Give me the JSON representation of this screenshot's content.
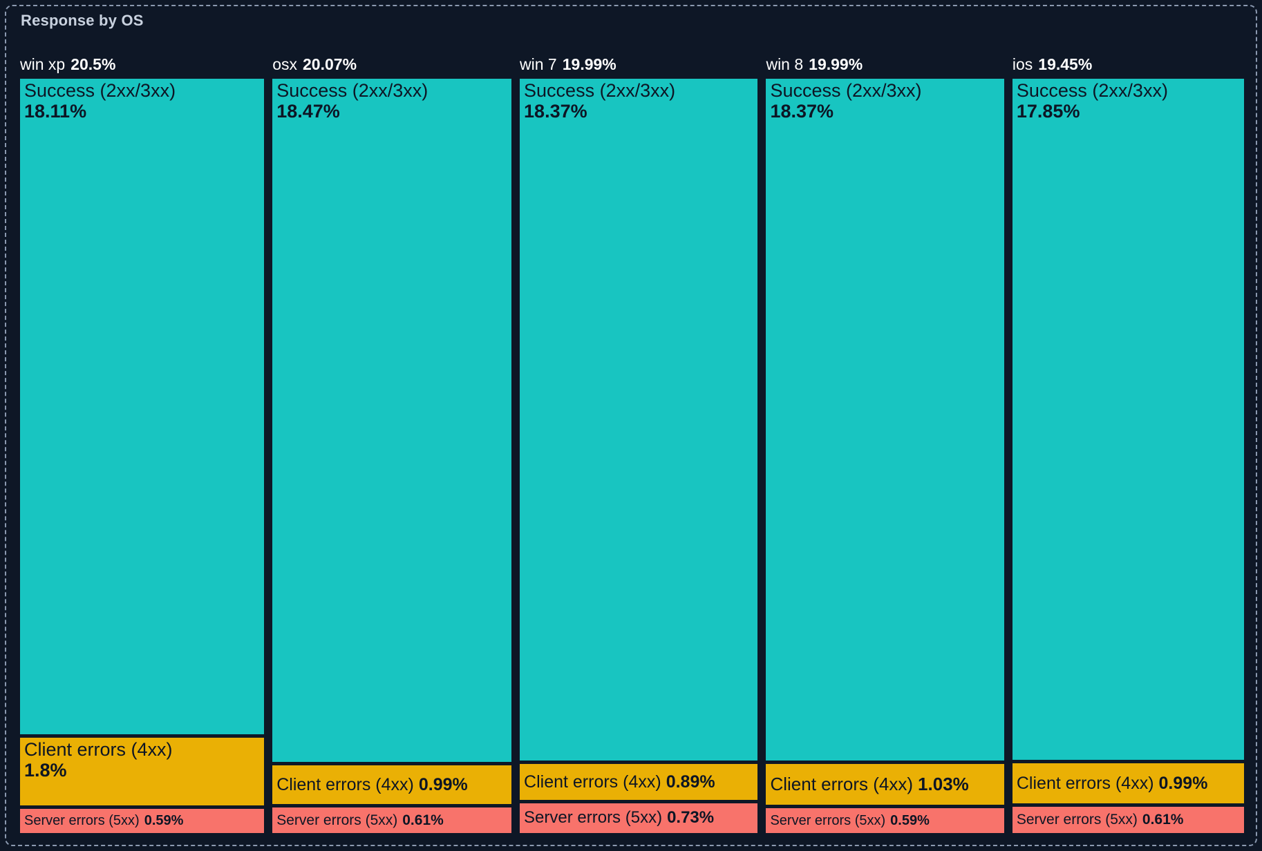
{
  "panel": {
    "title": "Response by OS"
  },
  "colors": {
    "background": "#0e1726",
    "border": "#8b99b0",
    "title_text": "#c9d2df",
    "header_text": "#ffffff",
    "segment_text": "#0d1524",
    "success": "#18c5c1",
    "client_errors": "#eab005",
    "server_errors": "#f8736b"
  },
  "chart_data": {
    "type": "treemap",
    "title": "Response by OS",
    "unit": "%",
    "legend": "none",
    "layout_hint": "five vertical columns sized by group total; segments stacked by value within each column",
    "groups": [
      {
        "name": "win xp",
        "total": "20.5%",
        "value": 20.5,
        "segments": [
          {
            "label": "Success (2xx/3xx)",
            "pct": "18.11%",
            "value": 18.11,
            "kind": "success"
          },
          {
            "label": "Client errors (4xx)",
            "pct": "1.8%",
            "value": 1.8,
            "kind": "client"
          },
          {
            "label": "Server errors (5xx)",
            "pct": "0.59%",
            "value": 0.59,
            "kind": "server"
          }
        ]
      },
      {
        "name": "osx",
        "total": "20.07%",
        "value": 20.07,
        "segments": [
          {
            "label": "Success (2xx/3xx)",
            "pct": "18.47%",
            "value": 18.47,
            "kind": "success"
          },
          {
            "label": "Client errors (4xx)",
            "pct": "0.99%",
            "value": 0.99,
            "kind": "client"
          },
          {
            "label": "Server errors (5xx)",
            "pct": "0.61%",
            "value": 0.61,
            "kind": "server"
          }
        ]
      },
      {
        "name": "win 7",
        "total": "19.99%",
        "value": 19.99,
        "segments": [
          {
            "label": "Success (2xx/3xx)",
            "pct": "18.37%",
            "value": 18.37,
            "kind": "success"
          },
          {
            "label": "Client errors (4xx)",
            "pct": "0.89%",
            "value": 0.89,
            "kind": "client"
          },
          {
            "label": "Server errors (5xx)",
            "pct": "0.73%",
            "value": 0.73,
            "kind": "server"
          }
        ]
      },
      {
        "name": "win 8",
        "total": "19.99%",
        "value": 19.99,
        "segments": [
          {
            "label": "Success (2xx/3xx)",
            "pct": "18.37%",
            "value": 18.37,
            "kind": "success"
          },
          {
            "label": "Client errors (4xx)",
            "pct": "1.03%",
            "value": 1.03,
            "kind": "client"
          },
          {
            "label": "Server errors (5xx)",
            "pct": "0.59%",
            "value": 0.59,
            "kind": "server"
          }
        ]
      },
      {
        "name": "ios",
        "total": "19.45%",
        "value": 19.45,
        "segments": [
          {
            "label": "Success (2xx/3xx)",
            "pct": "17.85%",
            "value": 17.85,
            "kind": "success"
          },
          {
            "label": "Client errors (4xx)",
            "pct": "0.99%",
            "value": 0.99,
            "kind": "client"
          },
          {
            "label": "Server errors (5xx)",
            "pct": "0.61%",
            "value": 0.61,
            "kind": "server"
          }
        ]
      }
    ]
  }
}
